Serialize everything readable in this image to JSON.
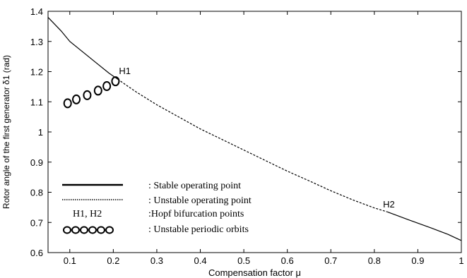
{
  "chart_data": {
    "type": "line",
    "xlabel": "Compensation factor  μ",
    "ylabel": "Rotor angle of the first generator δ1 (rad)",
    "xlim": [
      0.05,
      1.0
    ],
    "ylim": [
      0.6,
      1.4
    ],
    "xticks": [
      "0.1",
      "0.2",
      "0.3",
      "0.4",
      "0.5",
      "0.6",
      "0.7",
      "0.8",
      "0.9",
      "1"
    ],
    "yticks": [
      "0.6",
      "0.7",
      "0.8",
      "0.9",
      "1",
      "1.1",
      "1.2",
      "1.3",
      "1.4"
    ],
    "grid": false,
    "series": [
      {
        "name": ": Stable operating point",
        "style": "solid",
        "x": [
          0.05,
          0.08,
          0.1,
          0.13,
          0.16,
          0.19,
          0.21
        ],
        "y": [
          1.38,
          1.335,
          1.3,
          1.265,
          1.23,
          1.195,
          1.175
        ]
      },
      {
        "name": ": Unstable operating point",
        "style": "dashed",
        "x": [
          0.21,
          0.25,
          0.3,
          0.35,
          0.4,
          0.45,
          0.5,
          0.55,
          0.6,
          0.65,
          0.7,
          0.75,
          0.8,
          0.83
        ],
        "y": [
          1.175,
          1.135,
          1.09,
          1.05,
          1.01,
          0.975,
          0.94,
          0.905,
          0.87,
          0.838,
          0.805,
          0.775,
          0.748,
          0.735
        ]
      },
      {
        "name": ": Stable operating point",
        "style": "solid",
        "x": [
          0.83,
          0.88,
          0.93,
          0.97,
          1.0
        ],
        "y": [
          0.735,
          0.708,
          0.682,
          0.66,
          0.64
        ]
      },
      {
        "name": ": Unstable periodic orbits",
        "style": "circles",
        "x": [
          0.095,
          0.115,
          0.14,
          0.165,
          0.185,
          0.205
        ],
        "y": [
          1.095,
          1.108,
          1.122,
          1.137,
          1.152,
          1.168
        ]
      }
    ],
    "annotations": [
      {
        "text": "H1",
        "x": 0.213,
        "y": 1.185
      },
      {
        "text": "H2",
        "x": 0.82,
        "y": 0.743
      }
    ],
    "legend": {
      "placement": "bottom-left",
      "items": [
        {
          "style": "solid",
          "label": ": Stable operating point"
        },
        {
          "style": "dotted",
          "label": ": Unstable operating point"
        },
        {
          "style": "text",
          "sample": "H1, H2",
          "label": ":Hopf bifurcation points"
        },
        {
          "style": "circles",
          "label": ": Unstable periodic orbits"
        }
      ]
    }
  }
}
